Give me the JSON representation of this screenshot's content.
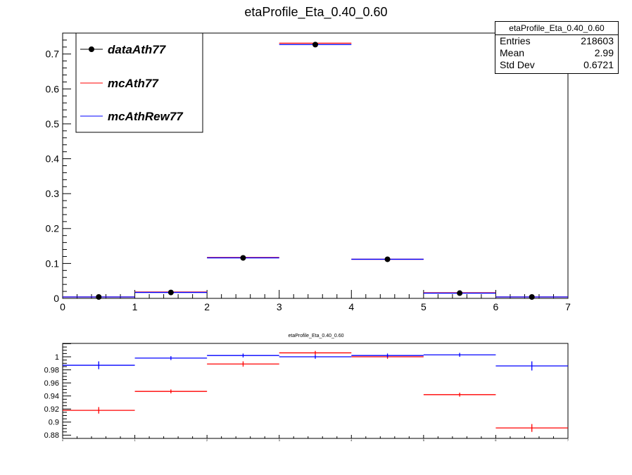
{
  "chart_data": [
    {
      "type": "scatter",
      "title": "etaProfile_Eta_0.40_0.60",
      "xlabel": "",
      "ylabel": "",
      "xlim": [
        0,
        7
      ],
      "ylim": [
        0,
        0.76
      ],
      "x_ticks": [
        "0",
        "1",
        "2",
        "3",
        "4",
        "5",
        "6",
        "7"
      ],
      "y_ticks": [
        "0",
        "0.1",
        "0.2",
        "0.3",
        "0.4",
        "0.5",
        "0.6",
        "0.7"
      ],
      "legend": {
        "position": "top-left"
      },
      "series": [
        {
          "name": "dataAth77",
          "color": "#000000",
          "style": "markers",
          "x": [
            0.5,
            1.5,
            2.5,
            3.5,
            4.5,
            5.5,
            6.5
          ],
          "y": [
            0.004,
            0.017,
            0.116,
            0.727,
            0.112,
            0.015,
            0.004
          ]
        },
        {
          "name": "mcAth77",
          "color": "#ff0000",
          "style": "bins",
          "x": [
            0.5,
            1.5,
            2.5,
            3.5,
            4.5,
            5.5,
            6.5
          ],
          "y": [
            0.004,
            0.018,
            0.117,
            0.731,
            0.112,
            0.016,
            0.004
          ]
        },
        {
          "name": "mcAthRew77",
          "color": "#0000ff",
          "style": "bins",
          "x": [
            0.5,
            1.5,
            2.5,
            3.5,
            4.5,
            5.5,
            6.5
          ],
          "y": [
            0.004,
            0.017,
            0.116,
            0.727,
            0.112,
            0.015,
            0.004
          ]
        }
      ],
      "stats": {
        "title": "etaProfile_Eta_0.40_0.60",
        "rows": [
          {
            "label": "Entries",
            "value": "218603"
          },
          {
            "label": "Mean",
            "value": "2.99"
          },
          {
            "label": "Std Dev",
            "value": "0.6721"
          }
        ]
      }
    },
    {
      "type": "scatter",
      "title": "etaProfile_Eta_0.40_0.60",
      "xlabel": "",
      "ylabel": "",
      "xlim": [
        0,
        7
      ],
      "ylim": [
        0.875,
        1.0205
      ],
      "x_ticks": [
        "0",
        "1",
        "2",
        "3",
        "4",
        "5",
        "6",
        "7"
      ],
      "y_ticks": [
        "0.88",
        "0.9",
        "0.92",
        "0.94",
        "0.96",
        "0.98",
        "1"
      ],
      "series": [
        {
          "color": "#ff0000",
          "x": [
            0.5,
            1.5,
            2.5,
            3.5,
            4.5,
            5.5,
            6.5
          ],
          "y": [
            0.918,
            0.947,
            0.989,
            1.006,
            1.0,
            0.942,
            0.891
          ],
          "err": [
            0.005,
            0.003,
            0.004,
            0.003,
            0.003,
            0.003,
            0.006
          ]
        },
        {
          "color": "#0000ff",
          "x": [
            0.5,
            1.5,
            2.5,
            3.5,
            4.5,
            5.5,
            6.5
          ],
          "y": [
            0.987,
            0.998,
            1.002,
            1.0,
            1.002,
            1.003,
            0.986
          ],
          "err": [
            0.006,
            0.003,
            0.003,
            0.003,
            0.003,
            0.003,
            0.007
          ]
        }
      ]
    }
  ]
}
